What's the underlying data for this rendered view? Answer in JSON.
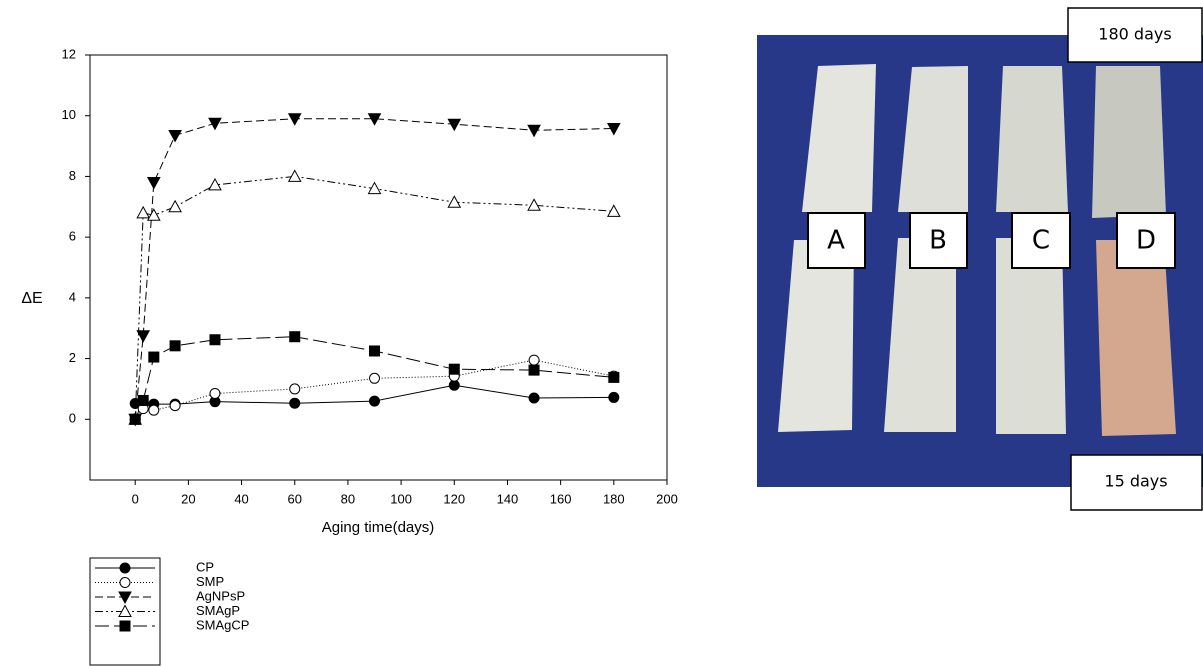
{
  "chart_data": {
    "type": "line",
    "xlabel": "Aging time(days)",
    "ylabel": "ΔE",
    "x": [
      0,
      3,
      7,
      15,
      30,
      60,
      90,
      120,
      150,
      180
    ],
    "xlim": [
      -17,
      200
    ],
    "ylim": [
      -2,
      12
    ],
    "xticks": [
      0,
      20,
      40,
      60,
      80,
      100,
      120,
      140,
      160,
      180,
      200
    ],
    "yticks": [
      0,
      2,
      4,
      6,
      8,
      10,
      12
    ],
    "series": [
      {
        "name": "CP",
        "color": "#000000",
        "marker": "circle",
        "filled": true,
        "dash": "none",
        "values": [
          0.52,
          0.55,
          0.5,
          0.5,
          0.58,
          0.53,
          0.6,
          1.12,
          0.7,
          0.72
        ]
      },
      {
        "name": "SMP",
        "color": "#000000",
        "marker": "circle",
        "filled": false,
        "dash": "1,2",
        "values": [
          0,
          0.35,
          0.3,
          0.45,
          0.85,
          1.0,
          1.35,
          1.42,
          1.95,
          1.42
        ]
      },
      {
        "name": "AgNPsP",
        "color": "#000000",
        "marker": "triangle-down",
        "filled": true,
        "dash": "8,4",
        "values": [
          0,
          2.75,
          7.8,
          9.35,
          9.75,
          9.9,
          9.9,
          9.72,
          9.52,
          9.58
        ]
      },
      {
        "name": "SMAgP",
        "color": "#000000",
        "marker": "triangle-up",
        "filled": false,
        "dash": "8,3,2,3,2,3",
        "values": [
          0,
          6.8,
          6.72,
          7.0,
          7.72,
          8.0,
          7.6,
          7.15,
          7.05,
          6.85
        ]
      },
      {
        "name": "SMAgCP",
        "color": "#000000",
        "marker": "square",
        "filled": true,
        "dash": "14,5",
        "values": [
          0,
          0.62,
          2.05,
          2.42,
          2.62,
          2.72,
          2.25,
          1.65,
          1.62,
          1.38
        ]
      }
    ]
  },
  "photo": {
    "top_label": "180 days",
    "bottom_label": "15 days",
    "sample_labels": [
      "A",
      "B",
      "C",
      "D"
    ]
  }
}
